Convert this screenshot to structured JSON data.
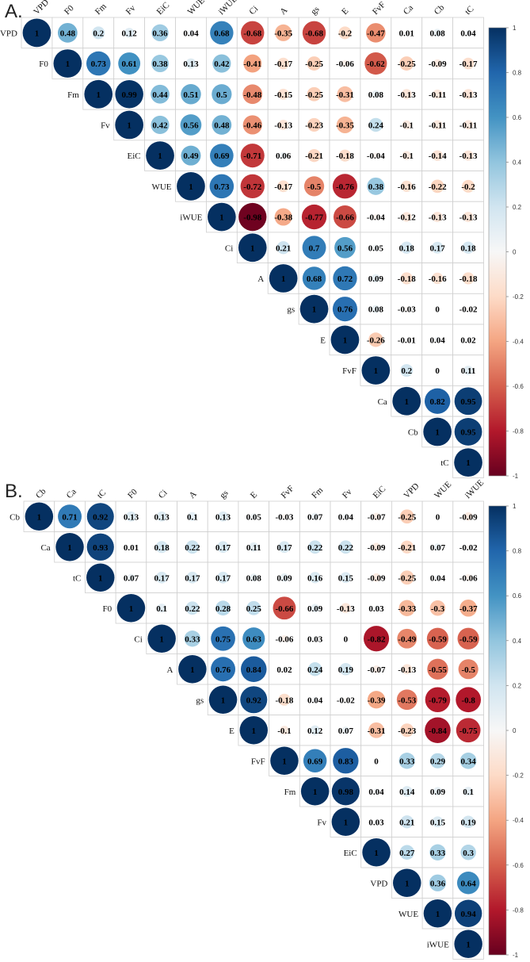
{
  "chart_data": [
    {
      "type": "heatmap",
      "panel_label": "A.",
      "variables": [
        "VPD",
        "F0",
        "Fm",
        "Fv",
        "EiC",
        "WUE",
        "iWUE",
        "Ci",
        "A",
        "gs",
        "E",
        "FvF",
        "Ca",
        "Cb",
        "tC"
      ],
      "matrix": [
        [
          1,
          0.48,
          0.2,
          0.12,
          0.36,
          0.04,
          0.68,
          -0.68,
          -0.35,
          -0.68,
          -0.2,
          -0.47,
          0.01,
          0.08,
          0.04
        ],
        [
          1,
          0.73,
          0.61,
          0.38,
          0.13,
          0.42,
          -0.41,
          -0.17,
          -0.25,
          -0.06,
          -0.62,
          -0.25,
          -0.09,
          -0.17
        ],
        [
          1,
          0.99,
          0.44,
          0.51,
          0.5,
          -0.48,
          -0.15,
          -0.25,
          -0.31,
          0.08,
          -0.13,
          -0.11,
          -0.13
        ],
        [
          1,
          0.42,
          0.56,
          0.48,
          -0.46,
          -0.13,
          -0.23,
          -0.35,
          0.24,
          -0.1,
          -0.11,
          -0.11
        ],
        [
          1,
          0.49,
          0.69,
          -0.71,
          0.06,
          -0.21,
          -0.18,
          -0.04,
          -0.1,
          -0.14,
          -0.13
        ],
        [
          1,
          0.73,
          -0.72,
          -0.17,
          -0.5,
          -0.76,
          0.38,
          -0.16,
          -0.22,
          -0.2
        ],
        [
          1,
          -0.98,
          -0.38,
          -0.77,
          -0.66,
          -0.04,
          -0.12,
          -0.13,
          -0.13
        ],
        [
          1,
          0.21,
          0.7,
          0.56,
          0.05,
          0.18,
          0.17,
          0.18
        ],
        [
          1,
          0.68,
          0.72,
          0.09,
          -0.18,
          -0.16,
          -0.18
        ],
        [
          1,
          0.76,
          0.08,
          -0.03,
          0,
          -0.02
        ],
        [
          1,
          -0.26,
          -0.01,
          0.04,
          0.02
        ],
        [
          1,
          0.2,
          0,
          0.11
        ],
        [
          1,
          0.82,
          0.95
        ],
        [
          1,
          0.95
        ],
        [
          1
        ]
      ],
      "colorbar_ticks": [
        "1",
        "0.8",
        "0.6",
        "0.4",
        "0.2",
        "0",
        "-0.2",
        "-0.4",
        "-0.6",
        "-0.8",
        "-1"
      ],
      "range": [
        -1,
        1
      ]
    },
    {
      "type": "heatmap",
      "panel_label": "B.",
      "variables": [
        "Cb",
        "Ca",
        "tC",
        "F0",
        "Ci",
        "A",
        "gs",
        "E",
        "FvF",
        "Fm",
        "Fv",
        "EiC",
        "VPD",
        "WUE",
        "iWUE"
      ],
      "matrix": [
        [
          1,
          0.71,
          0.92,
          0.13,
          0.13,
          0.1,
          0.13,
          0.05,
          -0.03,
          0.07,
          0.04,
          -0.07,
          -0.25,
          0,
          -0.09
        ],
        [
          1,
          0.93,
          0.01,
          0.18,
          0.22,
          0.17,
          0.11,
          0.17,
          0.22,
          0.22,
          -0.09,
          -0.21,
          0.07,
          -0.02
        ],
        [
          1,
          0.07,
          0.17,
          0.17,
          0.17,
          0.08,
          0.09,
          0.16,
          0.15,
          -0.09,
          -0.25,
          0.04,
          -0.06
        ],
        [
          1,
          0.1,
          0.22,
          0.28,
          0.25,
          -0.66,
          0.09,
          -0.13,
          0.03,
          -0.33,
          -0.3,
          -0.37
        ],
        [
          1,
          0.33,
          0.75,
          0.63,
          -0.06,
          0.03,
          0,
          -0.82,
          -0.49,
          -0.59,
          -0.59
        ],
        [
          1,
          0.76,
          0.84,
          0.02,
          0.24,
          0.19,
          -0.07,
          -0.13,
          -0.55,
          -0.5
        ],
        [
          1,
          0.92,
          -0.18,
          0.04,
          -0.02,
          -0.39,
          -0.53,
          -0.79,
          -0.8
        ],
        [
          1,
          -0.1,
          0.12,
          0.07,
          -0.31,
          -0.23,
          -0.84,
          -0.75
        ],
        [
          1,
          0.69,
          0.83,
          0,
          0.33,
          0.29,
          0.34
        ],
        [
          1,
          0.98,
          0.04,
          0.14,
          0.09,
          0.1
        ],
        [
          1,
          0.03,
          0.21,
          0.15,
          0.19
        ],
        [
          1,
          0.27,
          0.33,
          0.3
        ],
        [
          1,
          0.36,
          0.64
        ],
        [
          1,
          0.94
        ],
        [
          1
        ]
      ],
      "colorbar_ticks": [
        "1",
        "0.8",
        "0.6",
        "0.4",
        "0.2",
        "0",
        "-0.2",
        "-0.4",
        "-0.6",
        "-0.8",
        "-1"
      ],
      "range": [
        -1,
        1
      ]
    }
  ]
}
